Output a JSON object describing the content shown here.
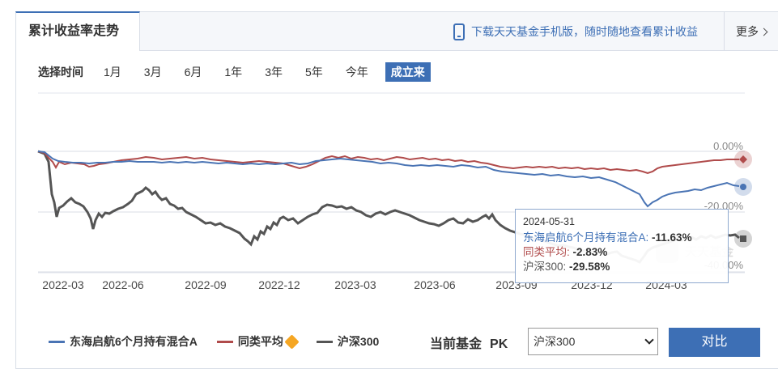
{
  "header": {
    "tab_title": "累计收益率走势",
    "download_link": "下载天天基金手机版，随时随地查看累计收益",
    "more_label": "更多",
    "icons": {
      "download": "phone-icon",
      "more": "chevron-right-icon"
    }
  },
  "range": {
    "label": "选择时间",
    "options": [
      "1月",
      "3月",
      "6月",
      "1年",
      "3年",
      "5年",
      "今年",
      "成立来"
    ],
    "selected": "成立来"
  },
  "chart_data": {
    "type": "line",
    "x_ticks": [
      "2022-03",
      "2022-06",
      "2022-09",
      "2022-12",
      "2023-03",
      "2023-06",
      "2023-09",
      "2023-12",
      "2024-03"
    ],
    "y_ticks": [
      "0.00%",
      "-20.00%",
      "-40.00%"
    ],
    "ylim": [
      -44,
      2
    ],
    "grid": true,
    "series": [
      {
        "name": "东海启航6个月持有混合A",
        "color": "#4a74b4"
      },
      {
        "name": "同类平均",
        "color": "#b04b4b"
      },
      {
        "name": "沪深300",
        "color": "#555555"
      }
    ],
    "tooltip": {
      "date": "2024-05-31",
      "rows": [
        {
          "label": "东海启航6个月持有混合A",
          "value": "-11.63%",
          "color": "#3d6fb5"
        },
        {
          "label": "同类平均",
          "value": "-2.83%",
          "color": "#b04b4b"
        },
        {
          "label": "沪深300",
          "value": "-29.58%",
          "color": "#555555"
        }
      ]
    }
  },
  "legend": {
    "items": [
      {
        "label": "东海启航6个月持有混合A",
        "color": "#4a74b4"
      },
      {
        "label": "同类平均",
        "color": "#b04b4b",
        "icon": "info-icon"
      },
      {
        "label": "沪深300",
        "color": "#555555"
      }
    ]
  },
  "pk": {
    "label": "当前基金",
    "pk_text": "PK",
    "selected": "沪深300",
    "button": "对比"
  }
}
